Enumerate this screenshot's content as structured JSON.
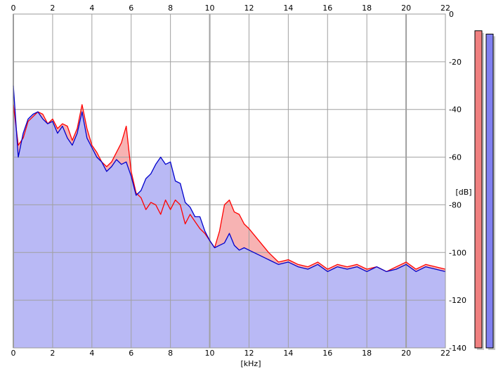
{
  "chart_data": {
    "type": "area",
    "xlabel": "[kHz]",
    "ylabel": "[dB]",
    "xlim": [
      0,
      22
    ],
    "ylim": [
      -140,
      0
    ],
    "x_ticks": [
      "0",
      "2",
      "4",
      "6",
      "8",
      "10",
      "12",
      "14",
      "16",
      "18",
      "20",
      "22"
    ],
    "y_ticks": [
      "0",
      "-20",
      "-40",
      "-60",
      "-80",
      "-100",
      "-120",
      "-140"
    ],
    "grid": true,
    "x": [
      0,
      0.25,
      0.5,
      0.75,
      1,
      1.25,
      1.5,
      1.75,
      2,
      2.25,
      2.5,
      2.75,
      3,
      3.25,
      3.5,
      3.75,
      4,
      4.25,
      4.5,
      4.75,
      5,
      5.25,
      5.5,
      5.75,
      6,
      6.25,
      6.5,
      6.75,
      7,
      7.25,
      7.5,
      7.75,
      8,
      8.25,
      8.5,
      8.75,
      9,
      9.25,
      9.5,
      9.75,
      10,
      10.25,
      10.5,
      10.75,
      11,
      11.25,
      11.5,
      11.75,
      12,
      12.5,
      13,
      13.5,
      14,
      14.5,
      15,
      15.5,
      16,
      16.5,
      17,
      17.5,
      18,
      18.5,
      19,
      19.5,
      20,
      20.5,
      21,
      21.5,
      22
    ],
    "series": [
      {
        "color": "#ff0000",
        "fill": "#f7b3b3",
        "values": [
          -38,
          -55,
          -52,
          -45,
          -43,
          -41,
          -42,
          -46,
          -44,
          -48,
          -46,
          -47,
          -53,
          -48,
          -38,
          -48,
          -55,
          -58,
          -62,
          -64,
          -62,
          -58,
          -54,
          -47,
          -66,
          -75,
          -77,
          -82,
          -79,
          -80,
          -84,
          -78,
          -82,
          -78,
          -80,
          -88,
          -84,
          -87,
          -90,
          -92,
          -95,
          -98,
          -91,
          -80,
          -78,
          -83,
          -84,
          -88,
          -90,
          -95,
          -100,
          -104,
          -103,
          -105,
          -106,
          -104,
          -107,
          -105,
          -106,
          -105,
          -107,
          -106,
          -108,
          -106,
          -104,
          -107,
          -105,
          -106,
          -107
        ]
      },
      {
        "color": "#0000cc",
        "fill": "#b9b9f5",
        "values": [
          -30,
          -60,
          -50,
          -44,
          -42,
          -41,
          -44,
          -46,
          -45,
          -50,
          -47,
          -52,
          -55,
          -50,
          -41,
          -52,
          -56,
          -60,
          -62,
          -66,
          -64,
          -61,
          -63,
          -62,
          -68,
          -76,
          -74,
          -69,
          -67,
          -63,
          -60,
          -63,
          -62,
          -70,
          -71,
          -79,
          -81,
          -85,
          -85,
          -91,
          -95,
          -98,
          -97,
          -96,
          -92,
          -97,
          -99,
          -98,
          -99,
          -101,
          -103,
          -105,
          -104,
          -106,
          -107,
          -105,
          -108,
          -106,
          -107,
          -106,
          -108,
          -106,
          -108,
          -107,
          -105,
          -108,
          -106,
          -107,
          -108
        ]
      }
    ],
    "level_meters": [
      {
        "color": "#f08080",
        "level": 0.95
      },
      {
        "color": "#8080f0",
        "level": 0.94
      }
    ]
  }
}
